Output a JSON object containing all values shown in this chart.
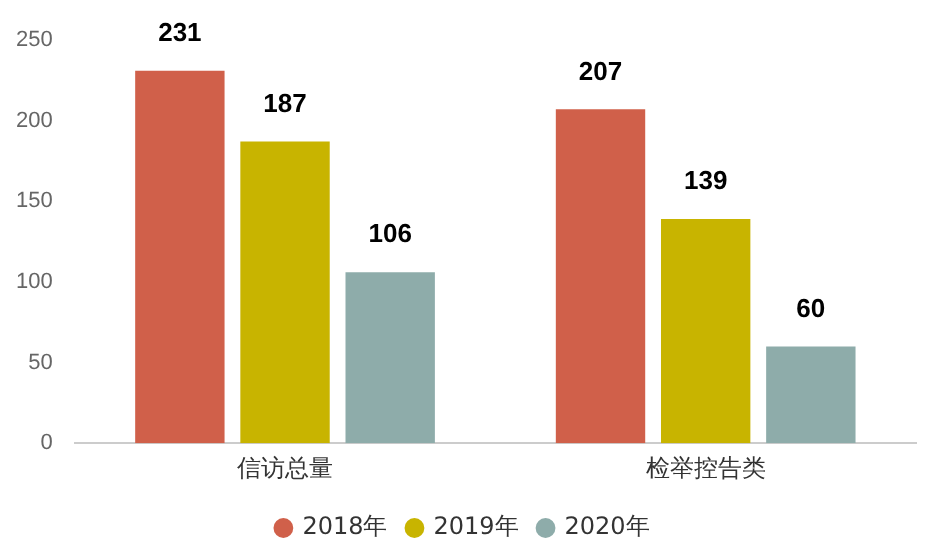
{
  "chart_data": {
    "type": "bar",
    "categories": [
      "信访总量",
      "检举控告类"
    ],
    "series": [
      {
        "name": "2018年",
        "color": "#d0604a",
        "values": [
          231,
          207
        ]
      },
      {
        "name": "2019年",
        "color": "#c8b400",
        "values": [
          187,
          139
        ]
      },
      {
        "name": "2020年",
        "color": "#8eacaa",
        "values": [
          106,
          60
        ]
      }
    ],
    "ylim": [
      0,
      250
    ],
    "yticks": [
      0,
      50,
      100,
      150,
      200,
      250
    ],
    "grid": false,
    "legend": "bottom",
    "data_labels": true
  }
}
